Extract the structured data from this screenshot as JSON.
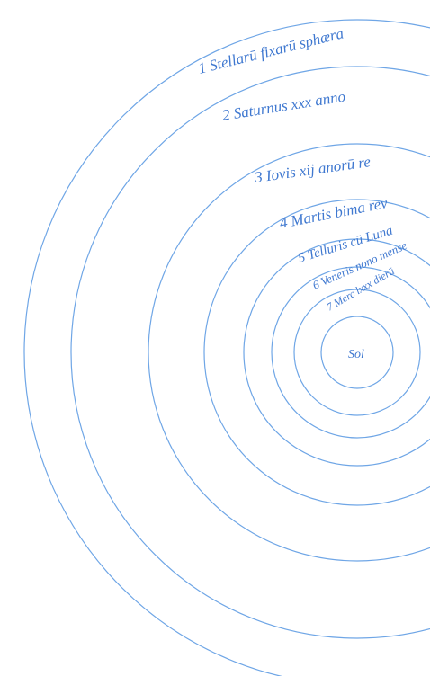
{
  "labels": [
    "1 Stellarū fixarū sphæra",
    "2 Saturnus xxx anno",
    "3 Iovis xij anorū re",
    "4 Martis bima rev",
    "5 Telluris cū Luna",
    "6 Veneris nono mense",
    "7 Merc lxxx dierū"
  ],
  "center": "Sol"
}
